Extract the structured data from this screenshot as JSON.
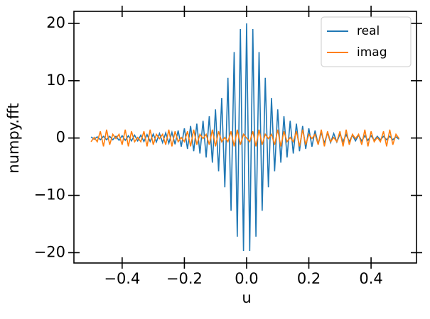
{
  "chart_data": {
    "type": "line",
    "x_label": "u",
    "y_label": "numpy.fft",
    "x": [
      -0.5,
      -0.49,
      -0.48,
      -0.47,
      -0.46,
      -0.45,
      -0.44,
      -0.43,
      -0.42,
      -0.41,
      -0.4,
      -0.39,
      -0.38,
      -0.37,
      -0.36,
      -0.35,
      -0.34,
      -0.33,
      -0.32,
      -0.31,
      -0.3,
      -0.29,
      -0.28,
      -0.27,
      -0.26,
      -0.25,
      -0.24,
      -0.23,
      -0.22,
      -0.21,
      -0.2,
      -0.19,
      -0.18,
      -0.17,
      -0.16,
      -0.15,
      -0.14,
      -0.13,
      -0.12,
      -0.11,
      -0.1,
      -0.09,
      -0.08,
      -0.07,
      -0.06,
      -0.05,
      -0.04,
      -0.03,
      -0.02,
      -0.01,
      0,
      0.01,
      0.02,
      0.03,
      0.04,
      0.05,
      0.06,
      0.07,
      0.08,
      0.09,
      0.1,
      0.11,
      0.12,
      0.13,
      0.14,
      0.15,
      0.16,
      0.17,
      0.18,
      0.19,
      0.2,
      0.21,
      0.22,
      0.23,
      0.24,
      0.25,
      0.26,
      0.27,
      0.28,
      0.29,
      0.3,
      0.31,
      0.32,
      0.33,
      0.34,
      0.35,
      0.36,
      0.37,
      0.38,
      0.39,
      0.4,
      0.41,
      0.42,
      0.43,
      0.44,
      0.45,
      0.46,
      0.47,
      0.48,
      0.49
    ],
    "series": [
      {
        "name": "real",
        "color": "#1f77b4",
        "values": [
          0.2,
          -0.2,
          0.2,
          -0.3,
          0.3,
          -0.3,
          0.3,
          -0.3,
          0.3,
          -0.4,
          0.4,
          -0.4,
          0.4,
          -0.5,
          0.5,
          -0.5,
          0.5,
          -0.6,
          0.6,
          -0.6,
          0.7,
          -0.7,
          0.8,
          -0.8,
          0.9,
          -0.9,
          1,
          -1.1,
          1.3,
          -1.5,
          1.7,
          -1.9,
          2.1,
          -2.3,
          2.5,
          -2.7,
          3,
          -3.4,
          3.8,
          -4.3,
          5,
          -5.8,
          7,
          -8.6,
          10.5,
          -12.7,
          15,
          -17.2,
          19,
          -19.7,
          20,
          -19.7,
          19,
          -17.2,
          15,
          -12.7,
          10.5,
          -8.6,
          7,
          -5.8,
          5,
          -4.3,
          3.8,
          -3.4,
          3,
          -2.7,
          2.5,
          -2.3,
          2.1,
          -1.9,
          1.7,
          -1.5,
          1.3,
          -1.1,
          1,
          -0.9,
          0.9,
          -0.8,
          0.8,
          -0.7,
          0.7,
          -0.6,
          0.6,
          -0.6,
          0.5,
          -0.5,
          0.5,
          -0.5,
          0.4,
          -0.4,
          0.4,
          -0.4,
          0.3,
          -0.3,
          0.3,
          -0.3,
          0.3,
          -0.3,
          0.2,
          -0.2
        ]
      },
      {
        "name": "imag",
        "color": "#ff7f0e",
        "values": [
          -0.65,
          0.1,
          -0.65,
          1.17,
          -1.46,
          1.46,
          -1.17,
          0.65,
          -0.1,
          0.65,
          -1.17,
          1.46,
          -1.46,
          1.17,
          -0.65,
          0.1,
          -0.65,
          1.17,
          -1.46,
          1.46,
          -1.17,
          0.65,
          -0.1,
          0.65,
          -1.17,
          1.46,
          -1.46,
          1.17,
          -0.65,
          0.1,
          -0.65,
          1.17,
          -1.46,
          1.46,
          -1.17,
          0.65,
          -0.1,
          0.65,
          -1.17,
          1.46,
          -1.46,
          1.17,
          -0.65,
          0.1,
          -0.65,
          1.17,
          -1.46,
          1.46,
          -1.17,
          0.65,
          0,
          -0.65,
          1.17,
          -1.46,
          1.46,
          -1.17,
          0.65,
          -0.1,
          0.65,
          -1.17,
          1.46,
          -1.46,
          1.17,
          -0.65,
          0.1,
          -0.65,
          1.17,
          -1.46,
          1.46,
          -1.17,
          0.65,
          -0.1,
          0.65,
          -1.17,
          1.46,
          -1.46,
          1.17,
          -0.65,
          0.1,
          -0.65,
          1.17,
          -1.46,
          1.46,
          -1.17,
          0.65,
          -0.1,
          0.65,
          -1.17,
          1.46,
          -1.46,
          1.17,
          -0.65,
          0.1,
          -0.65,
          1.17,
          -1.46,
          1.46,
          -1.17,
          0.65,
          -0.1
        ]
      }
    ],
    "xlim": [
      -0.555,
      0.546
    ],
    "ylim": [
      -21.8,
      22.1
    ],
    "xticks": [
      {
        "value": -0.4,
        "label": "−0.4"
      },
      {
        "value": -0.2,
        "label": "−0.2"
      },
      {
        "value": 0,
        "label": "0.0"
      },
      {
        "value": 0.2,
        "label": "0.2"
      },
      {
        "value": 0.4,
        "label": "0.4"
      }
    ],
    "yticks": [
      {
        "value": -20,
        "label": "−20"
      },
      {
        "value": -10,
        "label": "−10"
      },
      0,
      10,
      20
    ],
    "legend": "upper right",
    "grid": false
  }
}
